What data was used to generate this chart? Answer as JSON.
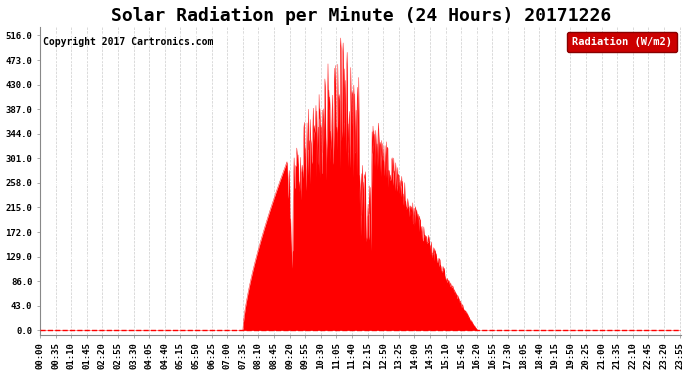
{
  "title": "Solar Radiation per Minute (24 Hours) 20171226",
  "ylabel": "Radiation (W/m2)",
  "copyright_text": "Copyright 2017 Cartronics.com",
  "yticks": [
    0.0,
    43.0,
    86.0,
    129.0,
    172.0,
    215.0,
    258.0,
    301.0,
    344.0,
    387.0,
    430.0,
    473.0,
    516.0
  ],
  "ymax": 530,
  "fill_color": "#ff0000",
  "line_color": "#ff0000",
  "background_color": "#ffffff",
  "grid_color_h": "#aaaaaa",
  "grid_color_v": "#cccccc",
  "dashed_zero_color": "red",
  "legend_bg": "#cc0000",
  "legend_text": "Radiation (W/m2)",
  "legend_text_color": "white",
  "title_fontsize": 13,
  "tick_fontsize": 6.5,
  "copyright_fontsize": 7
}
